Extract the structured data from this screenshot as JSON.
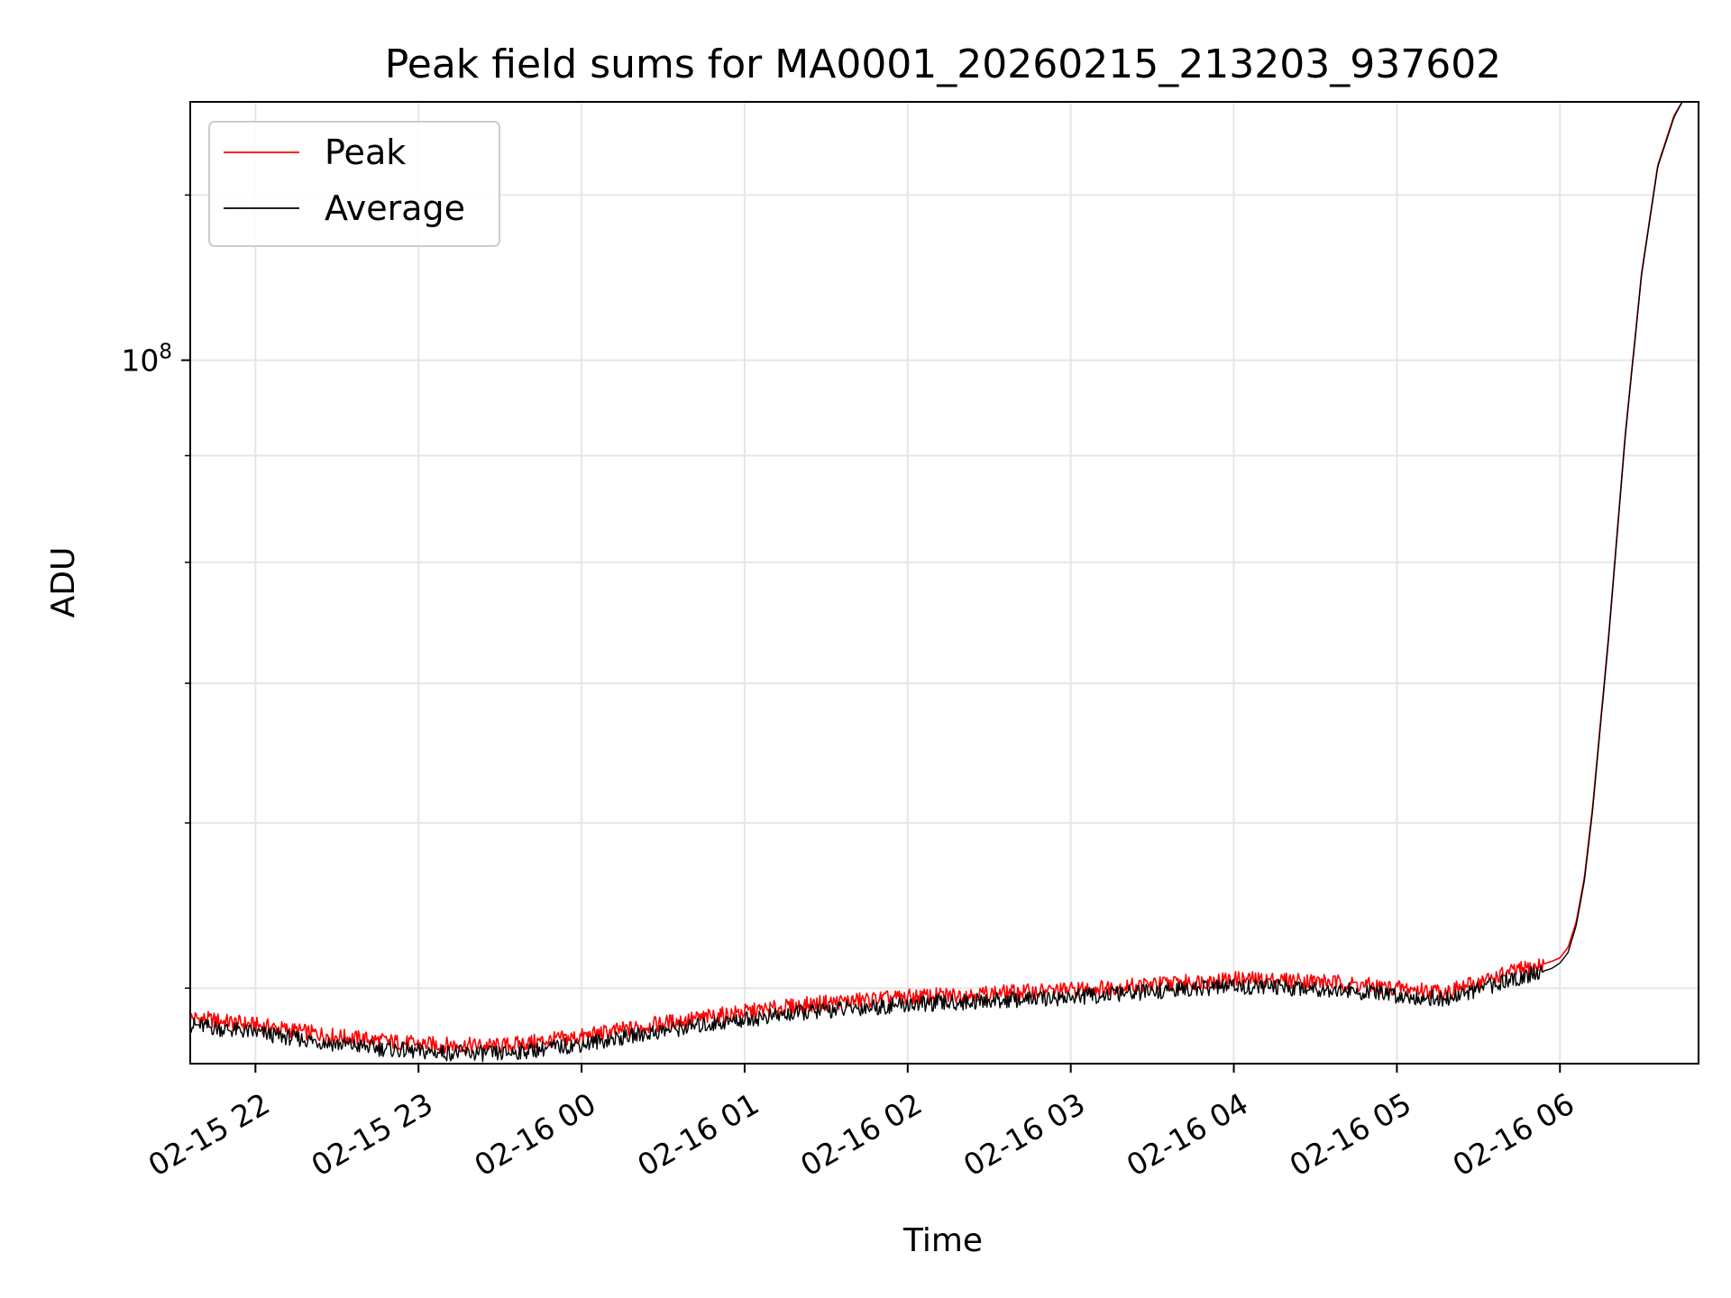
{
  "chart_data": {
    "type": "line",
    "title": "Peak field sums for MA0001_20260215_213203_937602",
    "xlabel": "Time",
    "ylabel": "ADU",
    "yscale": "log",
    "ylim": [
      46000000,
      133000000
    ],
    "xlim_hours": [
      -0.4,
      8.85
    ],
    "x_tick_hours": [
      0,
      1,
      2,
      3,
      4,
      5,
      6,
      7,
      8
    ],
    "x_tick_labels": [
      "02-15 22",
      "02-15 23",
      "02-16 00",
      "02-16 01",
      "02-16 02",
      "02-16 03",
      "02-16 04",
      "02-16 05",
      "02-16 06"
    ],
    "y_major_ticks": [
      100000000
    ],
    "y_major_tick_labels": [
      "10",
      "8"
    ],
    "y_minor_ticks": [
      50000000,
      60000000,
      70000000,
      80000000,
      90000000,
      120000000
    ],
    "grid": true,
    "legend_position": "top-left",
    "series": [
      {
        "name": "Peak",
        "color": "#ff0000",
        "x_hours": [
          -0.4,
          0.0,
          0.5,
          1.0,
          1.5,
          2.0,
          2.5,
          3.0,
          3.5,
          4.0,
          4.5,
          5.0,
          5.5,
          6.0,
          6.5,
          7.0,
          7.3,
          7.5,
          7.7,
          7.85,
          7.95,
          8.0,
          8.05,
          8.1,
          8.15,
          8.2,
          8.3,
          8.4,
          8.5,
          8.6,
          8.7,
          8.75
        ],
        "values": [
          48400000,
          48000000,
          47400000,
          47000000,
          46900000,
          47400000,
          48100000,
          48700000,
          49200000,
          49500000,
          49700000,
          49900000,
          50200000,
          50500000,
          50400000,
          50000000,
          49800000,
          50300000,
          50900000,
          51200000,
          51500000,
          51700000,
          52300000,
          53800000,
          56500000,
          61000000,
          74000000,
          92000000,
          110000000,
          124000000,
          131000000,
          133000000
        ]
      },
      {
        "name": "Average",
        "color": "#000000",
        "x_hours": [
          -0.4,
          0.0,
          0.5,
          1.0,
          1.5,
          2.0,
          2.5,
          3.0,
          3.5,
          4.0,
          4.5,
          5.0,
          5.5,
          6.0,
          6.5,
          7.0,
          7.3,
          7.5,
          7.7,
          7.85,
          7.95,
          8.0,
          8.05,
          8.1,
          8.15,
          8.2,
          8.3,
          8.4,
          8.5,
          8.6,
          8.7,
          8.75
        ],
        "values": [
          48000000,
          47600000,
          47000000,
          46600000,
          46500000,
          47000000,
          47700000,
          48300000,
          48800000,
          49100000,
          49300000,
          49500000,
          49800000,
          50100000,
          50000000,
          49600000,
          49400000,
          49900000,
          50500000,
          50800000,
          51100000,
          51400000,
          52000000,
          53600000,
          56300000,
          60800000,
          73800000,
          91800000,
          109800000,
          123800000,
          130800000,
          133000000
        ]
      }
    ]
  }
}
